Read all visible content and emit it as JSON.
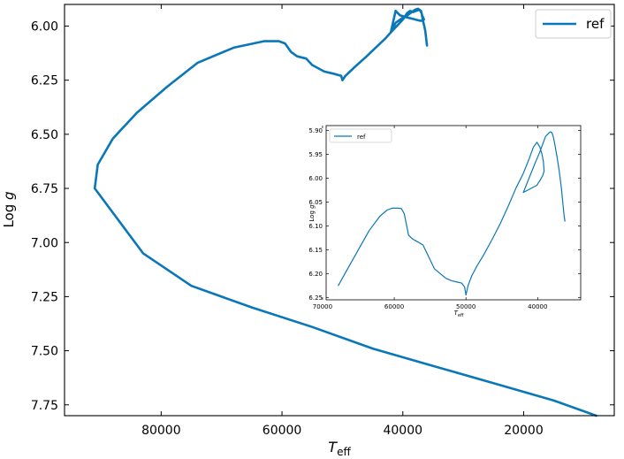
{
  "chart_data": [
    {
      "type": "line",
      "title": "",
      "xlabel": "T",
      "xlabel_sub": "eff",
      "ylabel": "Log",
      "ylabel_var": "g",
      "xlim": [
        96000,
        5000
      ],
      "ylim": [
        5.9,
        7.8
      ],
      "y_inverted": true,
      "x_inverted": true,
      "xticks": [
        80000,
        60000,
        40000,
        20000
      ],
      "xtick_labels": [
        "80000",
        "60000",
        "40000",
        "20000"
      ],
      "yticks": [
        6.0,
        6.25,
        6.5,
        6.75,
        7.0,
        7.25,
        7.5,
        7.75
      ],
      "ytick_labels": [
        "6.00",
        "6.25",
        "6.50",
        "6.75",
        "7.00",
        "7.25",
        "7.50",
        "7.75"
      ],
      "grid": false,
      "legend_position": "top-right",
      "color": "#0a77b8",
      "series": [
        {
          "name": "ref",
          "x": [
            8000,
            15000,
            25000,
            35000,
            45000,
            55000,
            65000,
            75000,
            83000,
            91000,
            90500,
            88000,
            84000,
            79000,
            74000,
            68000,
            63000,
            60500,
            59500,
            58500,
            57500,
            56000,
            55000,
            53000,
            51500,
            50200,
            50000,
            49500,
            48000,
            46000,
            44500,
            43000,
            42000,
            41000,
            40000,
            39300,
            38800,
            38300,
            37800,
            37300,
            37000,
            36800,
            36500,
            36700,
            37200,
            37900,
            38600,
            39300,
            39900,
            40500,
            41200,
            42000,
            41200,
            40200,
            39200,
            38500,
            38000,
            37500,
            37200,
            36900,
            36700,
            36300,
            36000
          ],
          "y": [
            7.8,
            7.73,
            7.65,
            7.57,
            7.49,
            7.39,
            7.3,
            7.2,
            7.05,
            6.75,
            6.64,
            6.52,
            6.4,
            6.28,
            6.17,
            6.1,
            6.07,
            6.07,
            6.08,
            6.12,
            6.14,
            6.15,
            6.18,
            6.21,
            6.22,
            6.23,
            6.25,
            6.23,
            6.19,
            6.14,
            6.1,
            6.06,
            6.03,
            6.0,
            5.97,
            5.94,
            5.93,
            5.935,
            5.93,
            5.925,
            5.93,
            5.95,
            5.97,
            5.975,
            5.975,
            5.97,
            5.965,
            5.96,
            5.955,
            5.95,
            5.93,
            6.03,
            5.985,
            5.965,
            5.95,
            5.935,
            5.925,
            5.92,
            5.925,
            5.94,
            5.97,
            6.02,
            6.09
          ]
        }
      ]
    },
    {
      "type": "line",
      "title": "",
      "xlabel": "T",
      "xlabel_sub": "eff",
      "ylabel": "Log",
      "ylabel_var": "g",
      "xlim": [
        69500,
        34000
      ],
      "ylim": [
        5.89,
        6.255
      ],
      "y_inverted": true,
      "x_inverted": true,
      "xticks": [
        70000,
        60000,
        50000,
        40000
      ],
      "xtick_labels": [
        "70000",
        "60000",
        "50000",
        "40000"
      ],
      "yticks": [
        5.9,
        5.95,
        6.0,
        6.05,
        6.1,
        6.15,
        6.2,
        6.25
      ],
      "ytick_labels": [
        "5.90",
        "5.95",
        "6.00",
        "6.05",
        "6.10",
        "6.15",
        "6.20",
        "6.25"
      ],
      "grid": false,
      "legend_position": "top-left",
      "color": "#0a77b8",
      "series": [
        {
          "name": "ref",
          "x": [
            67800,
            66500,
            65000,
            63500,
            62000,
            61000,
            60300,
            59800,
            59400,
            59000,
            58600,
            58000,
            57400,
            56800,
            56000,
            55200,
            54400,
            53600,
            52800,
            52000,
            51200,
            50600,
            50200,
            50000,
            49700,
            49200,
            48500,
            47500,
            46400,
            45200,
            44000,
            43000,
            42000,
            41200,
            40600,
            40100,
            39700,
            39400,
            39200,
            39100,
            39300,
            39600,
            39900,
            40100,
            42000,
            41200,
            40400,
            39700,
            39200,
            38900,
            38600,
            38400,
            38200,
            38000,
            37800,
            37600,
            37300,
            37000,
            36700,
            36500,
            36300,
            36200
          ],
          "y": [
            6.225,
            6.19,
            6.15,
            6.11,
            6.08,
            6.067,
            6.063,
            6.063,
            6.063,
            6.064,
            6.075,
            6.12,
            6.128,
            6.133,
            6.14,
            6.165,
            6.19,
            6.2,
            6.21,
            6.215,
            6.218,
            6.22,
            6.228,
            6.245,
            6.225,
            6.205,
            6.185,
            6.16,
            6.13,
            6.095,
            6.055,
            6.02,
            5.99,
            5.96,
            5.935,
            5.925,
            5.935,
            5.95,
            5.965,
            5.985,
            5.995,
            6.003,
            6.01,
            6.015,
            6.03,
            6.0,
            5.97,
            5.945,
            5.925,
            5.913,
            5.908,
            5.905,
            5.903,
            5.905,
            5.915,
            5.93,
            5.955,
            5.985,
            6.02,
            6.05,
            6.08,
            6.09
          ]
        }
      ]
    }
  ]
}
